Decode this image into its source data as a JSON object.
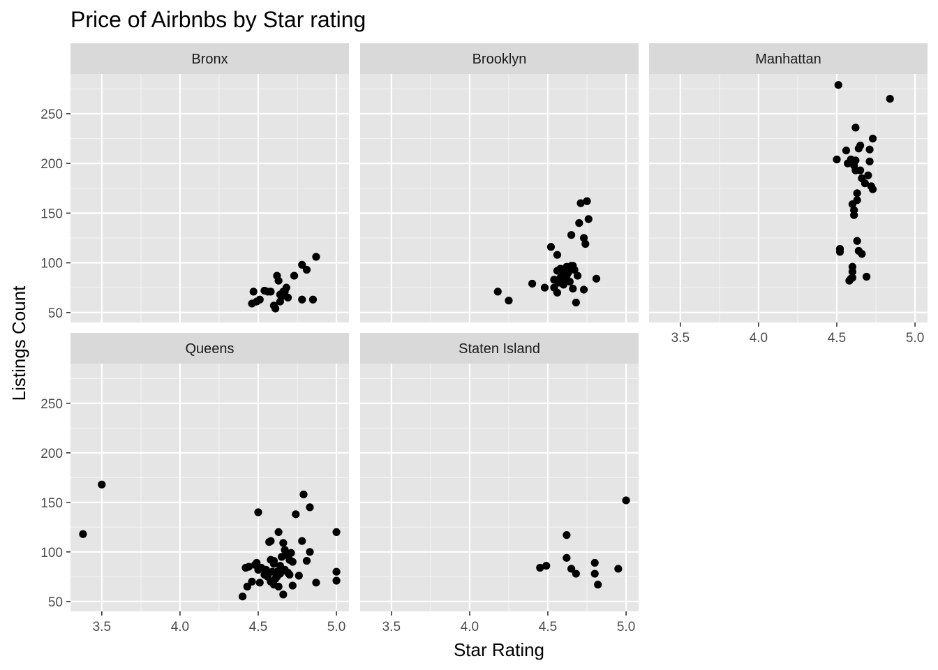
{
  "chart_data": {
    "type": "scatter",
    "title": "Price of Airbnbs by Star rating",
    "xlabel": "Star Rating",
    "ylabel": "Listings Count",
    "xlim": [
      3.3,
      5.08
    ],
    "ylim": [
      40,
      290
    ],
    "x_ticks": [
      3.5,
      4.0,
      4.5,
      5.0
    ],
    "x_tick_labels": [
      "3.5",
      "4.0",
      "4.5",
      "5.0"
    ],
    "y_ticks": [
      50,
      100,
      150,
      200,
      250
    ],
    "y_tick_labels": [
      "50",
      "100",
      "150",
      "200",
      "250"
    ],
    "grid": true,
    "colors": {
      "panel_bg": "#e5e5e5",
      "strip_bg": "#d9d9d9",
      "grid_major": "#ffffff",
      "point": "#000000"
    },
    "panels": [
      {
        "name": "Bronx",
        "points": [
          [
            4.47,
            71
          ],
          [
            4.46,
            59
          ],
          [
            4.49,
            61
          ],
          [
            4.51,
            63
          ],
          [
            4.54,
            72
          ],
          [
            4.56,
            71
          ],
          [
            4.58,
            71
          ],
          [
            4.6,
            57
          ],
          [
            4.61,
            54
          ],
          [
            4.62,
            87
          ],
          [
            4.63,
            82
          ],
          [
            4.64,
            61
          ],
          [
            4.64,
            68
          ],
          [
            4.65,
            66
          ],
          [
            4.66,
            71
          ],
          [
            4.67,
            71
          ],
          [
            4.68,
            75
          ],
          [
            4.69,
            65
          ],
          [
            4.73,
            87
          ],
          [
            4.78,
            63
          ],
          [
            4.78,
            98
          ],
          [
            4.81,
            93
          ],
          [
            4.85,
            63
          ],
          [
            4.87,
            106
          ]
        ]
      },
      {
        "name": "Brooklyn",
        "points": [
          [
            4.18,
            71
          ],
          [
            4.25,
            62
          ],
          [
            4.4,
            79
          ],
          [
            4.48,
            75
          ],
          [
            4.52,
            116
          ],
          [
            4.54,
            83
          ],
          [
            4.54,
            75
          ],
          [
            4.56,
            70
          ],
          [
            4.56,
            92
          ],
          [
            4.56,
            108
          ],
          [
            4.57,
            80
          ],
          [
            4.58,
            85
          ],
          [
            4.58,
            94
          ],
          [
            4.59,
            88
          ],
          [
            4.6,
            78
          ],
          [
            4.61,
            92
          ],
          [
            4.61,
            82
          ],
          [
            4.62,
            96
          ],
          [
            4.62,
            87
          ],
          [
            4.63,
            90
          ],
          [
            4.64,
            81
          ],
          [
            4.65,
            97
          ],
          [
            4.65,
            128
          ],
          [
            4.66,
            74
          ],
          [
            4.67,
            93
          ],
          [
            4.68,
            60
          ],
          [
            4.69,
            87
          ],
          [
            4.7,
            140
          ],
          [
            4.71,
            160
          ],
          [
            4.73,
            125
          ],
          [
            4.73,
            73
          ],
          [
            4.74,
            119
          ],
          [
            4.75,
            162
          ],
          [
            4.76,
            144
          ],
          [
            4.81,
            84
          ],
          [
            4.66,
            97
          ]
        ]
      },
      {
        "name": "Manhattan",
        "points": [
          [
            4.5,
            204
          ],
          [
            4.51,
            279
          ],
          [
            4.52,
            111
          ],
          [
            4.52,
            114
          ],
          [
            4.56,
            213
          ],
          [
            4.57,
            200
          ],
          [
            4.58,
            82
          ],
          [
            4.59,
            204
          ],
          [
            4.6,
            85
          ],
          [
            4.6,
            96
          ],
          [
            4.6,
            91
          ],
          [
            4.6,
            159
          ],
          [
            4.61,
            198
          ],
          [
            4.61,
            153
          ],
          [
            4.61,
            148
          ],
          [
            4.62,
            236
          ],
          [
            4.62,
            203
          ],
          [
            4.62,
            193
          ],
          [
            4.63,
            122
          ],
          [
            4.63,
            170
          ],
          [
            4.63,
            163
          ],
          [
            4.64,
            112
          ],
          [
            4.64,
            215
          ],
          [
            4.65,
            218
          ],
          [
            4.65,
            193
          ],
          [
            4.66,
            109
          ],
          [
            4.66,
            185
          ],
          [
            4.68,
            180
          ],
          [
            4.69,
            86
          ],
          [
            4.7,
            188
          ],
          [
            4.71,
            214
          ],
          [
            4.71,
            202
          ],
          [
            4.72,
            177
          ],
          [
            4.73,
            174
          ],
          [
            4.73,
            225
          ],
          [
            4.84,
            265
          ],
          [
            4.59,
            84
          ]
        ]
      },
      {
        "name": "Queens",
        "points": [
          [
            3.38,
            118
          ],
          [
            3.5,
            168
          ],
          [
            4.4,
            55
          ],
          [
            4.42,
            84
          ],
          [
            4.43,
            65
          ],
          [
            4.44,
            85
          ],
          [
            4.46,
            70
          ],
          [
            4.48,
            87
          ],
          [
            4.49,
            89
          ],
          [
            4.5,
            82
          ],
          [
            4.5,
            140
          ],
          [
            4.51,
            69
          ],
          [
            4.52,
            84
          ],
          [
            4.54,
            77
          ],
          [
            4.55,
            82
          ],
          [
            4.56,
            75
          ],
          [
            4.57,
            110
          ],
          [
            4.58,
            111
          ],
          [
            4.58,
            92
          ],
          [
            4.58,
            70
          ],
          [
            4.59,
            80
          ],
          [
            4.6,
            88
          ],
          [
            4.6,
            67
          ],
          [
            4.61,
            73
          ],
          [
            4.62,
            75
          ],
          [
            4.63,
            65
          ],
          [
            4.63,
            120
          ],
          [
            4.64,
            86
          ],
          [
            4.64,
            78
          ],
          [
            4.65,
            95
          ],
          [
            4.66,
            109
          ],
          [
            4.66,
            57
          ],
          [
            4.67,
            102
          ],
          [
            4.67,
            82
          ],
          [
            4.68,
            97
          ],
          [
            4.69,
            79
          ],
          [
            4.7,
            92
          ],
          [
            4.7,
            77
          ],
          [
            4.71,
            99
          ],
          [
            4.72,
            90
          ],
          [
            4.72,
            66
          ],
          [
            4.74,
            138
          ],
          [
            4.76,
            76
          ],
          [
            4.78,
            111
          ],
          [
            4.79,
            158
          ],
          [
            4.81,
            91
          ],
          [
            4.83,
            145
          ],
          [
            4.83,
            100
          ],
          [
            4.87,
            69
          ],
          [
            5.0,
            120
          ],
          [
            5.0,
            80
          ],
          [
            5.0,
            71
          ],
          [
            4.62,
            80
          ],
          [
            4.6,
            91
          ]
        ]
      },
      {
        "name": "Staten Island",
        "points": [
          [
            4.45,
            84
          ],
          [
            4.49,
            86
          ],
          [
            4.62,
            117
          ],
          [
            4.62,
            94
          ],
          [
            4.65,
            83
          ],
          [
            4.68,
            78
          ],
          [
            4.8,
            89
          ],
          [
            4.8,
            78
          ],
          [
            4.82,
            67
          ],
          [
            4.95,
            83
          ],
          [
            5.0,
            152
          ]
        ]
      }
    ]
  }
}
